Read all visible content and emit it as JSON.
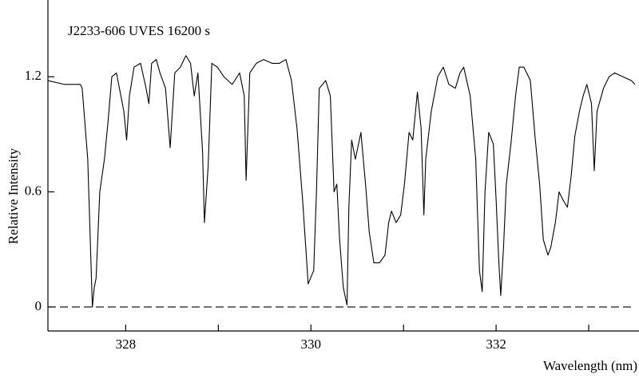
{
  "chart_data": {
    "type": "line",
    "title": "J2233-606  UVES  16200 s",
    "x_label": "Wavelength (nm)",
    "y_label": "Relative Intensity",
    "color": "#000000",
    "xlim": [
      327.16,
      333.5
    ],
    "ylim": [
      -0.125,
      1.6
    ],
    "xticks": [
      328,
      330,
      332
    ],
    "minor_xticks": [
      329,
      331,
      333
    ],
    "yticks": [
      0,
      0.6,
      1.2
    ],
    "reference_line": 0,
    "x": [
      327.16,
      327.34,
      327.51,
      327.53,
      327.59,
      327.64,
      327.66,
      327.68,
      327.72,
      327.77,
      327.81,
      327.85,
      327.9,
      327.94,
      327.98,
      328.01,
      328.04,
      328.09,
      328.16,
      328.22,
      328.25,
      328.28,
      328.33,
      328.37,
      328.43,
      328.48,
      328.53,
      328.59,
      328.65,
      328.7,
      328.74,
      328.78,
      328.83,
      328.85,
      328.89,
      328.93,
      328.99,
      329.06,
      329.15,
      329.23,
      329.28,
      329.3,
      329.34,
      329.41,
      329.49,
      329.58,
      329.66,
      329.73,
      329.79,
      329.85,
      329.91,
      329.95,
      329.97,
      330.03,
      330.06,
      330.09,
      330.16,
      330.21,
      330.25,
      330.28,
      330.31,
      330.35,
      330.39,
      330.41,
      330.44,
      330.48,
      330.54,
      330.59,
      330.63,
      330.68,
      330.74,
      330.8,
      330.84,
      330.87,
      330.92,
      330.97,
      331.01,
      331.06,
      331.1,
      331.15,
      331.19,
      331.22,
      331.24,
      331.3,
      331.37,
      331.43,
      331.49,
      331.56,
      331.61,
      331.65,
      331.72,
      331.78,
      331.82,
      331.85,
      331.88,
      331.92,
      331.97,
      332.0,
      332.03,
      332.05,
      332.08,
      332.11,
      332.16,
      332.21,
      332.25,
      332.3,
      332.37,
      332.42,
      332.47,
      332.51,
      332.56,
      332.59,
      332.64,
      332.68,
      332.72,
      332.77,
      332.81,
      332.85,
      332.9,
      332.94,
      332.98,
      333.03,
      333.06,
      333.09,
      333.16,
      333.22,
      333.28,
      333.37,
      333.46,
      333.5
    ],
    "values": [
      1.18,
      1.16,
      1.16,
      1.14,
      0.77,
      0.0,
      0.1,
      0.15,
      0.6,
      0.77,
      0.97,
      1.2,
      1.22,
      1.12,
      1.02,
      0.87,
      1.1,
      1.25,
      1.27,
      1.14,
      1.06,
      1.27,
      1.29,
      1.22,
      1.14,
      0.83,
      1.22,
      1.25,
      1.31,
      1.27,
      1.1,
      1.22,
      0.81,
      0.44,
      0.73,
      1.27,
      1.25,
      1.2,
      1.16,
      1.22,
      1.1,
      0.66,
      1.22,
      1.27,
      1.29,
      1.27,
      1.27,
      1.29,
      1.18,
      0.93,
      0.56,
      0.27,
      0.12,
      0.19,
      0.6,
      1.14,
      1.18,
      1.1,
      0.6,
      0.64,
      0.35,
      0.1,
      0.01,
      0.52,
      0.87,
      0.77,
      0.91,
      0.64,
      0.39,
      0.23,
      0.23,
      0.27,
      0.44,
      0.5,
      0.44,
      0.48,
      0.64,
      0.91,
      0.87,
      1.12,
      0.93,
      0.48,
      0.77,
      1.02,
      1.2,
      1.25,
      1.16,
      1.14,
      1.22,
      1.25,
      1.1,
      0.77,
      0.19,
      0.08,
      0.6,
      0.91,
      0.85,
      0.56,
      0.23,
      0.06,
      0.31,
      0.64,
      0.85,
      1.1,
      1.25,
      1.25,
      1.18,
      0.89,
      0.64,
      0.35,
      0.27,
      0.31,
      0.44,
      0.6,
      0.56,
      0.52,
      0.68,
      0.89,
      1.02,
      1.1,
      1.16,
      1.06,
      0.71,
      1.02,
      1.14,
      1.2,
      1.22,
      1.2,
      1.18,
      1.16
    ]
  }
}
